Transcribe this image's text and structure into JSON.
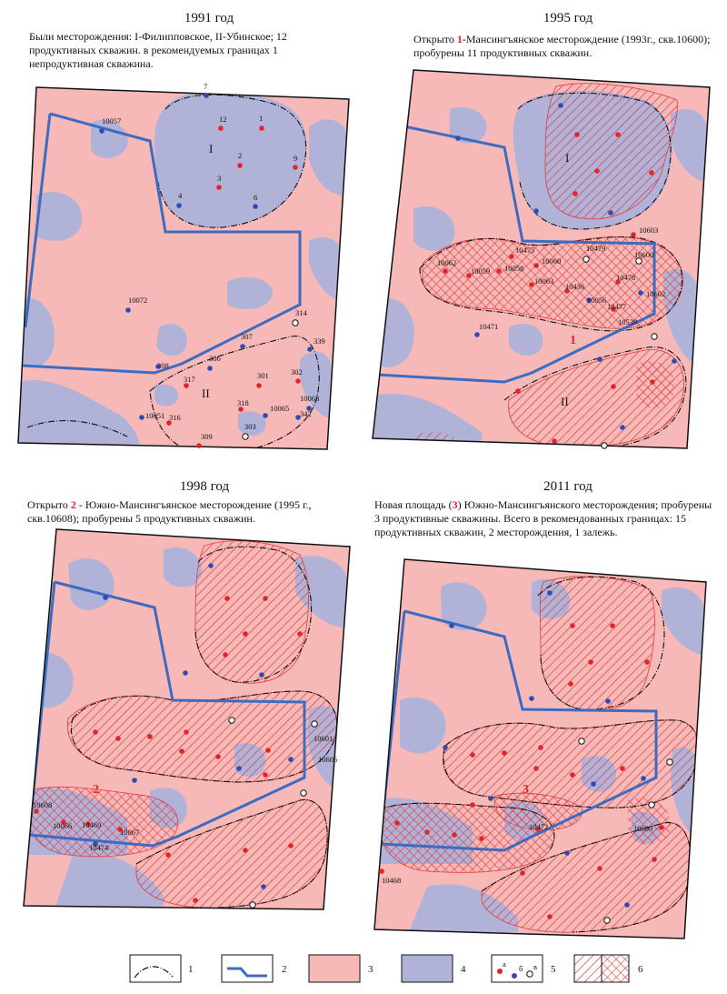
{
  "panels": {
    "p1991": {
      "year": "1991 год",
      "text": "Были месторождения: I-Филипповское, II-Убинское; 12 продуктивных скважин. в рекомендуемых границах 1 непродуктивная скважина.",
      "roman1": "I",
      "roman2": "II",
      "wells": [
        "10057",
        "12",
        "1",
        "7",
        "2",
        "9",
        "3",
        "4",
        "6",
        "10072",
        "314",
        "307",
        "339",
        "306",
        "308",
        "317",
        "301",
        "302",
        "10065",
        "10063",
        "318",
        "342",
        "10051",
        "316",
        "303",
        "309"
      ]
    },
    "p1995": {
      "year": "1995 год",
      "text_a": "Открыто ",
      "num": "1",
      "text_b": "-Мансингъянское месторождение (1993г., скв.10600); пробурены 11 продуктивных скважин.",
      "roman1": "I",
      "roman2": "II",
      "field": "1",
      "wells": [
        "10475",
        "10479",
        "10603",
        "10062",
        "10059",
        "10058",
        "10060",
        "10600",
        "10063",
        "10478",
        "10436",
        "10056",
        "10477",
        "10602",
        "10539",
        "10471"
      ]
    },
    "p1998": {
      "year": "1998 год",
      "text_a": "Открыто ",
      "num": "2",
      "text_b": " - Южно-Мансингъянское месторождение (1995 г., скв.10608); пробурены 5 продуктивных скважин.",
      "field": "2",
      "wells": [
        "10601",
        "10606",
        "10608",
        "10066",
        "10469",
        "10474",
        "10067"
      ]
    },
    "p2011": {
      "year": "2011 год",
      "text_a": "Новая площадь (",
      "num": "3",
      "text_b": ") Южно-Мансингъянского месторождения; пробурены 3 продуктивные скважины. Всего в рекомендованных границах: 15 продуктивных скважин, 2 месторождения, 1 залежь.",
      "field": "3",
      "wells": [
        "10472",
        "10609",
        "10468"
      ]
    }
  },
  "legend": {
    "items": [
      "1",
      "2",
      "3",
      "4",
      "5",
      "6"
    ],
    "well_letters": [
      "а",
      "б",
      "в"
    ]
  },
  "colors": {
    "pink": "#f7b8b8",
    "lilac": "#b1b2d8",
    "hatch": "#e03a3a",
    "boundary": "#3d6bc0",
    "well_red": "#e0262a",
    "well_blue": "#2f4bb0"
  }
}
